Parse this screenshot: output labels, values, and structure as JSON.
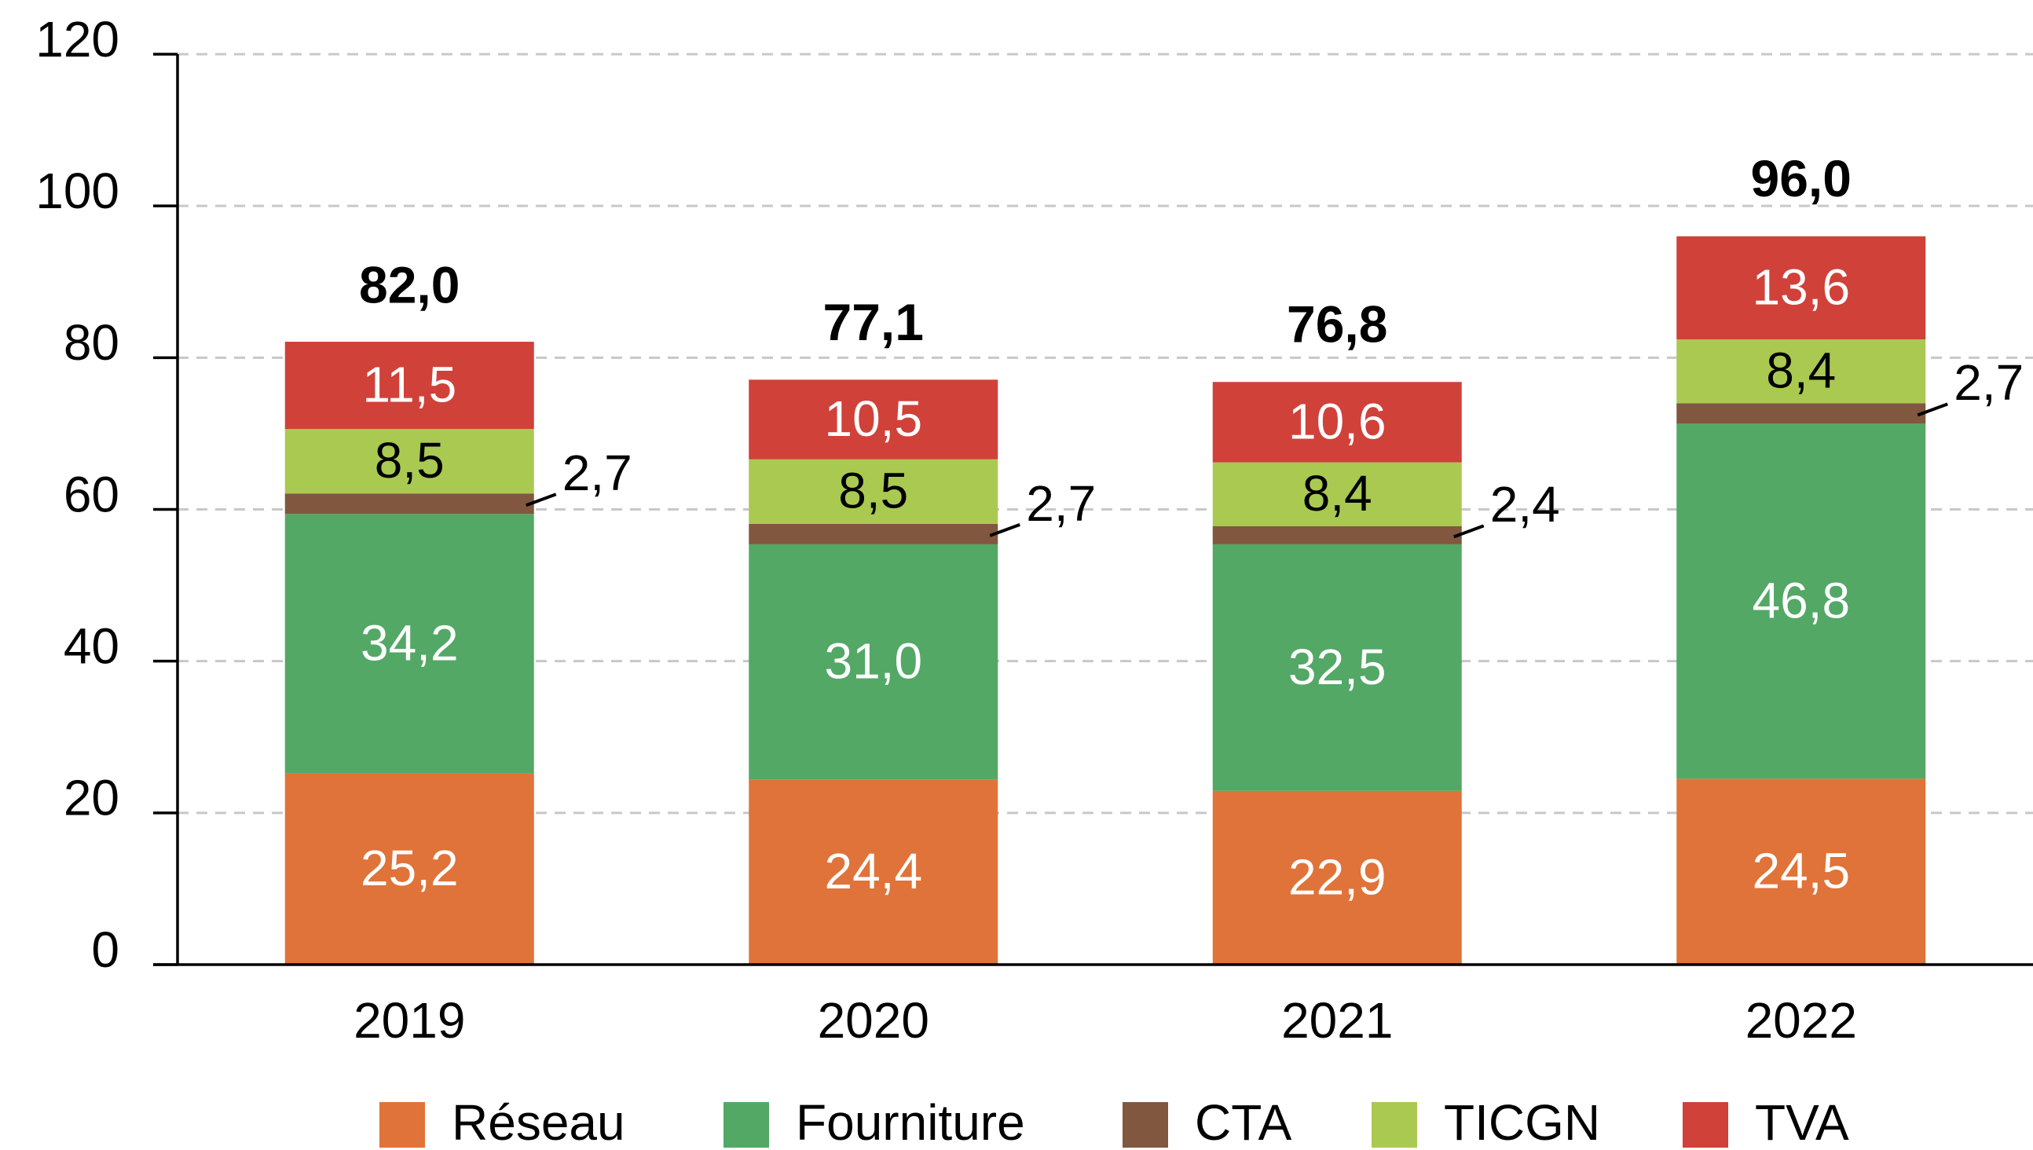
{
  "chart_data": {
    "type": "stacked_bar",
    "categories": [
      "2019",
      "2020",
      "2021",
      "2022"
    ],
    "series": [
      {
        "name": "Réseau",
        "color": "#e07339",
        "values": [
          25.2,
          24.4,
          22.9,
          24.5
        ],
        "value_labels": [
          "25,2",
          "24,4",
          "22,9",
          "24,5"
        ]
      },
      {
        "name": "Fourniture",
        "color": "#53a866",
        "values": [
          34.2,
          31.0,
          32.5,
          46.8
        ],
        "value_labels": [
          "34,2",
          "31,0",
          "32,5",
          "46,8"
        ]
      },
      {
        "name": "CTA",
        "color": "#81573f",
        "values": [
          2.7,
          2.7,
          2.4,
          2.7
        ],
        "value_labels": [
          "2,7",
          "2,7",
          "2,4",
          "2,7"
        ]
      },
      {
        "name": "TICGN",
        "color": "#aac951",
        "values": [
          8.5,
          8.5,
          8.4,
          8.4
        ],
        "value_labels": [
          "8,5",
          "8,5",
          "8,4",
          "8,4"
        ]
      },
      {
        "name": "TVA",
        "color": "#d0413a",
        "values": [
          11.5,
          10.5,
          10.6,
          13.6
        ],
        "value_labels": [
          "11,5",
          "10,5",
          "10,6",
          "13,6"
        ]
      }
    ],
    "totals": [
      82.0,
      77.1,
      76.8,
      96.0
    ],
    "total_labels": [
      "82,0",
      "77,1",
      "76,8",
      "96,0"
    ],
    "ylim": [
      0,
      120
    ],
    "yticks": [
      0,
      20,
      40,
      60,
      80,
      100,
      120
    ],
    "grid": true,
    "legend": "bottom"
  }
}
